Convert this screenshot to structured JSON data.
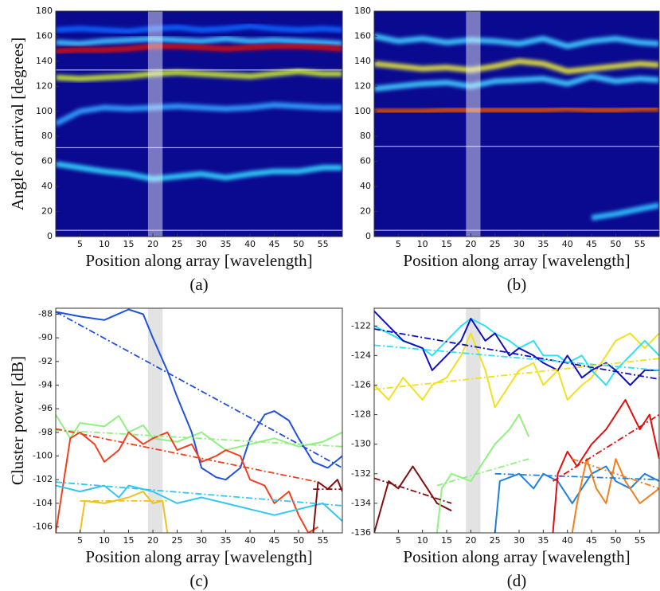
{
  "chart_data": [
    {
      "type": "heatmap",
      "caption": "(a)",
      "ylabel": "Angle of arrival [degrees]",
      "xlabel": "Position along array [wavelength]",
      "background": "#0a0a90",
      "xlim": [
        0,
        59
      ],
      "ylim": [
        0,
        180
      ],
      "xticks": [
        5,
        10,
        15,
        20,
        25,
        30,
        35,
        40,
        45,
        50,
        55
      ],
      "yticks": [
        0,
        20,
        40,
        60,
        80,
        100,
        120,
        140,
        160,
        180
      ],
      "highlight_x": [
        19,
        22
      ],
      "highlight_color": "rgba(255,255,255,0.45)",
      "hlines": [
        133,
        71,
        5
      ],
      "x": [
        0,
        5,
        10,
        15,
        20,
        25,
        30,
        35,
        40,
        45,
        50,
        55,
        59
      ],
      "series": [
        {
          "color": "#1060ff",
          "values": [
            165,
            166,
            165,
            164,
            166,
            167,
            165,
            166,
            168,
            166,
            165,
            166,
            165
          ]
        },
        {
          "color": "#40c0ff",
          "values": [
            155,
            154,
            156,
            157,
            158,
            157,
            156,
            158,
            156,
            157,
            156,
            155,
            154
          ]
        },
        {
          "color": "#30a0ff",
          "values": [
            90,
            100,
            103,
            102,
            103,
            104,
            103,
            102,
            103,
            105,
            104,
            103,
            103
          ]
        },
        {
          "color": "#30d0ff",
          "values": [
            58,
            55,
            52,
            50,
            46,
            48,
            50,
            47,
            50,
            52,
            52,
            55,
            55
          ]
        },
        {
          "color": "#c8e632",
          "values": [
            127,
            126,
            127,
            128,
            130,
            131,
            130,
            129,
            128,
            130,
            132,
            130,
            130
          ]
        },
        {
          "color": "#d01010",
          "values": [
            148,
            149,
            149,
            150,
            152,
            152,
            151,
            150,
            151,
            152,
            152,
            151,
            150
          ]
        }
      ]
    },
    {
      "type": "heatmap",
      "caption": "(b)",
      "xlabel": "Position along array [wavelength]",
      "background": "#0a0a90",
      "xlim": [
        0,
        59
      ],
      "ylim": [
        0,
        180
      ],
      "xticks": [
        5,
        10,
        15,
        20,
        25,
        30,
        35,
        40,
        45,
        50,
        55
      ],
      "yticks": [
        0,
        20,
        40,
        60,
        80,
        100,
        120,
        140,
        160,
        180
      ],
      "highlight_x": [
        19,
        22
      ],
      "highlight_color": "rgba(255,255,255,0.45)",
      "hlines": [
        72,
        5
      ],
      "x": [
        0,
        5,
        10,
        15,
        20,
        25,
        30,
        35,
        40,
        45,
        50,
        55,
        59
      ],
      "series": [
        {
          "color": "#40c8ff",
          "values": [
            160,
            156,
            158,
            155,
            157,
            156,
            154,
            158,
            152,
            156,
            158,
            155,
            154
          ]
        },
        {
          "color": "#40c8ff",
          "values": [
            118,
            120,
            122,
            123,
            120,
            124,
            125,
            126,
            122,
            128,
            124,
            126,
            125
          ]
        },
        {
          "color": "#e0e040",
          "values": [
            138,
            136,
            134,
            135,
            133,
            136,
            140,
            138,
            132,
            134,
            136,
            138,
            137
          ]
        },
        {
          "color": "#30c0ff",
          "values": [
            null,
            null,
            null,
            null,
            null,
            null,
            null,
            null,
            null,
            15,
            18,
            22,
            25
          ]
        },
        {
          "color": "#e05000",
          "values": [
            100,
            100,
            100,
            101,
            101,
            101,
            101,
            101,
            102,
            101,
            101,
            102,
            102
          ]
        }
      ]
    },
    {
      "type": "line",
      "caption": "(c)",
      "ylabel": "Cluster power [dB]",
      "xlabel": "Position along array [wavelength]",
      "xlim": [
        0,
        59
      ],
      "ylim": [
        -106.5,
        -87.5
      ],
      "xticks": [
        5,
        10,
        15,
        20,
        25,
        30,
        35,
        40,
        45,
        50,
        55
      ],
      "yticks": [
        -106,
        -104,
        -102,
        -100,
        -98,
        -96,
        -94,
        -92,
        -90,
        -88
      ],
      "highlight_x": [
        19,
        22
      ],
      "highlight_color": "rgba(200,200,200,0.5)",
      "series": [
        {
          "color": "#90f080",
          "x": [
            0,
            3,
            5,
            10,
            13,
            15,
            18,
            20,
            25,
            30,
            35,
            40,
            45,
            50,
            55,
            59
          ],
          "values": [
            -96.5,
            -98.5,
            -97.2,
            -97.5,
            -96.6,
            -98,
            -97.4,
            -98.5,
            -98.8,
            -98,
            -99.5,
            -99,
            -98.5,
            -99.2,
            -98.8,
            -98
          ]
        },
        {
          "color": "#2050e0",
          "x": [
            0,
            5,
            10,
            15,
            18,
            20,
            23,
            25,
            28,
            30,
            33,
            35,
            38,
            40,
            43,
            45,
            48,
            50,
            53,
            56,
            59
          ],
          "values": [
            -87.8,
            -88.2,
            -88.5,
            -87.6,
            -88,
            -90,
            -92.8,
            -95,
            -98,
            -101,
            -101.8,
            -102,
            -101,
            -98.5,
            -96.5,
            -96.2,
            -97,
            -98.5,
            -100.5,
            -101,
            -100
          ]
        },
        {
          "color": "#f04020",
          "x": [
            0,
            3,
            5,
            8,
            10,
            13,
            15,
            18,
            20,
            23,
            25,
            28,
            30,
            33,
            35,
            38,
            40,
            43,
            45,
            48,
            50,
            52,
            54
          ],
          "values": [
            -106.5,
            -98.5,
            -98,
            -99,
            -100.5,
            -99.5,
            -98,
            -99,
            -98.5,
            -98,
            -99.5,
            -99,
            -100.5,
            -100,
            -99.5,
            -100,
            -102,
            -102.5,
            -104,
            -103,
            -105,
            -106.5,
            -106
          ]
        },
        {
          "color": "#30c8f0",
          "x": [
            0,
            5,
            10,
            13,
            15,
            20,
            25,
            30,
            35,
            40,
            45,
            50,
            55,
            59
          ],
          "values": [
            -102.5,
            -103,
            -102.5,
            -103.5,
            -102.5,
            -103,
            -104,
            -103.5,
            -104,
            -104.5,
            -105,
            -104.5,
            -104,
            -105.5
          ]
        },
        {
          "color": "#f0c020",
          "x": [
            5,
            6,
            10,
            15,
            18,
            20,
            22,
            23
          ],
          "values": [
            -106.5,
            -103.8,
            -104,
            -103.5,
            -103,
            -104,
            -103.8,
            -106.5
          ]
        },
        {
          "color": "#801010",
          "x": [
            53,
            54,
            56,
            58,
            59
          ],
          "values": [
            -106.5,
            -102.2,
            -102.8,
            -102,
            -103
          ]
        },
        {
          "color": "#2050e0",
          "dash": true,
          "x": [
            0,
            59
          ],
          "values": [
            -87.8,
            -101
          ]
        },
        {
          "color": "#90f080",
          "dash": true,
          "x": [
            0,
            59
          ],
          "values": [
            -97.8,
            -99.2
          ]
        },
        {
          "color": "#f04020",
          "dash": true,
          "x": [
            0,
            54
          ],
          "values": [
            -97.7,
            -102.2
          ]
        },
        {
          "color": "#30c8f0",
          "dash": true,
          "x": [
            0,
            59
          ],
          "values": [
            -102.2,
            -104.2
          ]
        },
        {
          "color": "#f0c020",
          "dash": true,
          "x": [
            5,
            23
          ],
          "values": [
            -103.8,
            -103.8
          ]
        },
        {
          "color": "#801010",
          "dash": true,
          "x": [
            53,
            59
          ],
          "values": [
            -102.8,
            -102.8
          ]
        }
      ]
    },
    {
      "type": "line",
      "caption": "(d)",
      "xlabel": "Position along array [wavelength]",
      "xlim": [
        0,
        59
      ],
      "ylim": [
        -136,
        -120.8
      ],
      "xticks": [
        5,
        10,
        15,
        20,
        25,
        30,
        35,
        40,
        45,
        50,
        55
      ],
      "yticks": [
        -136,
        -134,
        -132,
        -130,
        -128,
        -126,
        -124,
        -122
      ],
      "highlight_x": [
        19,
        22
      ],
      "highlight_color": "rgba(200,200,200,0.5)",
      "series": [
        {
          "color": "#f0e020",
          "x": [
            0,
            3,
            6,
            10,
            12,
            15,
            18,
            20,
            23,
            25,
            28,
            30,
            33,
            35,
            38,
            40,
            43,
            45,
            48,
            50,
            53,
            56,
            59
          ],
          "values": [
            -126,
            -127,
            -125.5,
            -127,
            -126,
            -125.5,
            -124,
            -122.5,
            -125,
            -127.5,
            -126,
            -125,
            -124.5,
            -126,
            -125,
            -127,
            -126,
            -125.5,
            -124,
            -123,
            -122.5,
            -123.5,
            -122.5
          ]
        },
        {
          "color": "#30e0f0",
          "x": [
            0,
            3,
            6,
            10,
            12,
            15,
            18,
            20,
            23,
            25,
            28,
            30,
            33,
            35,
            38,
            40,
            43,
            45,
            48,
            50,
            53,
            56,
            59
          ],
          "values": [
            -122,
            -122.5,
            -123,
            -123.5,
            -124,
            -123,
            -122,
            -121.5,
            -122,
            -122.5,
            -123,
            -123.5,
            -123,
            -124,
            -124,
            -124.5,
            -124,
            -125,
            -126,
            -125,
            -124,
            -123,
            -124
          ]
        },
        {
          "color": "#1010c0",
          "x": [
            0,
            3,
            6,
            10,
            12,
            15,
            18,
            20,
            23,
            25,
            28,
            30,
            33,
            35,
            38,
            40,
            43,
            45,
            48,
            50,
            53,
            56,
            59
          ],
          "values": [
            -121,
            -122,
            -123,
            -123.5,
            -125,
            -124,
            -123,
            -121.5,
            -123,
            -122.5,
            -124,
            -123.5,
            -124,
            -124.5,
            -125,
            -124,
            -125.5,
            -125,
            -124.5,
            -125,
            -126,
            -125,
            -125
          ]
        },
        {
          "color": "#801010",
          "x": [
            0,
            3,
            5,
            8,
            10,
            13,
            16
          ],
          "values": [
            -136,
            -132.5,
            -133,
            -131.5,
            -132.5,
            -134,
            -134.5
          ]
        },
        {
          "color": "#90f080",
          "x": [
            13,
            14,
            16,
            20,
            23,
            25,
            28,
            30,
            32
          ],
          "values": [
            -136,
            -133,
            -132,
            -132.5,
            -131,
            -130,
            -129,
            -128,
            -129.5
          ]
        },
        {
          "color": "#2080e0",
          "x": [
            25,
            26,
            30,
            33,
            35,
            38,
            41,
            43,
            45,
            48,
            50,
            53,
            56,
            59
          ],
          "values": [
            -136,
            -132.5,
            -132,
            -133,
            -132,
            -132.5,
            -134,
            -133,
            -132,
            -131.5,
            -132.5,
            -133,
            -132,
            -132.5
          ]
        },
        {
          "color": "#e01010",
          "x": [
            37,
            38,
            40,
            42,
            45,
            48,
            50,
            52,
            55,
            57,
            59
          ],
          "values": [
            -136,
            -132,
            -130.5,
            -131.5,
            -130,
            -129,
            -128,
            -127,
            -129,
            -128,
            -131
          ]
        },
        {
          "color": "#f08020",
          "x": [
            41,
            42,
            44,
            46,
            48,
            50,
            52,
            55,
            59
          ],
          "values": [
            -136,
            -134,
            -131,
            -133,
            -134,
            -131,
            -132.5,
            -134,
            -133
          ]
        },
        {
          "color": "#1010c0",
          "dash": true,
          "x": [
            0,
            59
          ],
          "values": [
            -122.2,
            -125.6
          ]
        },
        {
          "color": "#30e0f0",
          "dash": true,
          "x": [
            0,
            59
          ],
          "values": [
            -123.3,
            -125
          ]
        },
        {
          "color": "#f0e020",
          "dash": true,
          "x": [
            0,
            59
          ],
          "values": [
            -126.3,
            -124.2
          ]
        },
        {
          "color": "#801010",
          "dash": true,
          "x": [
            0,
            16
          ],
          "values": [
            -132.3,
            -134
          ]
        },
        {
          "color": "#90f080",
          "dash": true,
          "x": [
            13,
            32
          ],
          "values": [
            -132.8,
            -131
          ]
        },
        {
          "color": "#2080e0",
          "dash": true,
          "x": [
            25,
            59
          ],
          "values": [
            -132,
            -132.4
          ]
        },
        {
          "color": "#e01010",
          "dash": true,
          "x": [
            37,
            59
          ],
          "values": [
            -132.5,
            -128
          ]
        },
        {
          "color": "#f08020",
          "dash": true,
          "x": [
            41,
            59
          ],
          "values": [
            -131,
            -133
          ]
        }
      ]
    }
  ]
}
